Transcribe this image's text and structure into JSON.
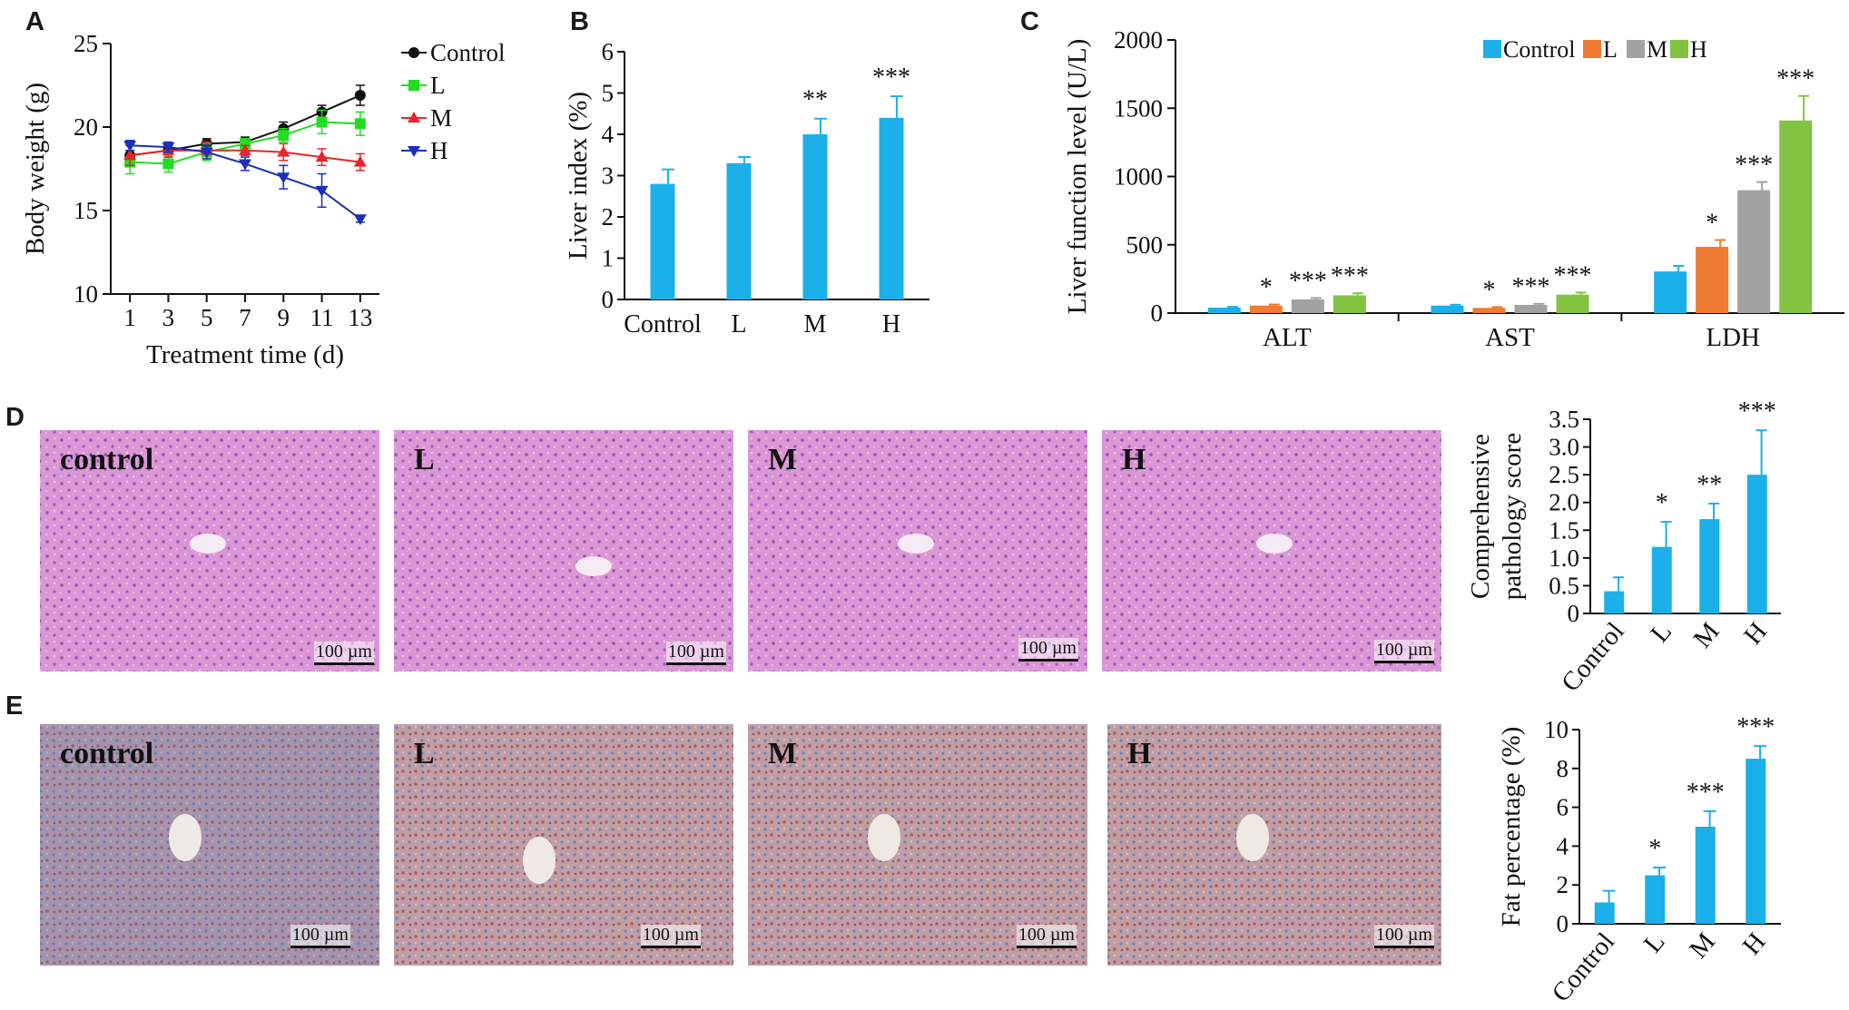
{
  "panels": {
    "A": {
      "letter": "A"
    },
    "B": {
      "letter": "B"
    },
    "C": {
      "letter": "C"
    },
    "D": {
      "letter": "D",
      "images": [
        "control",
        "L",
        "M",
        "H"
      ],
      "scale_bar": "100 µm"
    },
    "E": {
      "letter": "E",
      "images": [
        "control",
        "L",
        "M",
        "H"
      ],
      "scale_bar": "100 µm"
    }
  },
  "colors": {
    "control": "#1bb0ea",
    "L": "#ef7c32",
    "M": "#a2a2a2",
    "H": "#82c341",
    "line_control": "#111111",
    "line_L": "#22dd22",
    "line_M": "#e8262b",
    "line_H": "#1b2fb8",
    "he_stain": "#d88fd2",
    "oil_red": "#c79a97"
  },
  "chart_data": [
    {
      "id": "A",
      "type": "line",
      "xlabel": "Treatment time (d)",
      "ylabel": "Body weight (g)",
      "x": [
        1,
        3,
        5,
        7,
        9,
        11,
        13
      ],
      "xticks": [
        1,
        3,
        5,
        7,
        9,
        11,
        13
      ],
      "ylim": [
        10,
        25
      ],
      "yticks": [
        10,
        15,
        20,
        25
      ],
      "legend": "right",
      "series": [
        {
          "name": "Control",
          "marker": "circle",
          "values": [
            18.3,
            18.6,
            19.0,
            19.1,
            19.9,
            20.9,
            21.9
          ],
          "err": [
            0.6,
            0.4,
            0.3,
            0.3,
            0.4,
            0.4,
            0.6
          ]
        },
        {
          "name": "L",
          "marker": "square",
          "values": [
            17.9,
            17.8,
            18.5,
            19.0,
            19.5,
            20.3,
            20.2
          ],
          "err": [
            0.7,
            0.5,
            0.5,
            0.3,
            0.4,
            0.7,
            0.7
          ]
        },
        {
          "name": "M",
          "marker": "triangle-up",
          "values": [
            18.3,
            18.6,
            18.6,
            18.6,
            18.5,
            18.2,
            17.9
          ],
          "err": [
            0.6,
            0.4,
            0.5,
            0.3,
            0.5,
            0.5,
            0.5
          ]
        },
        {
          "name": "H",
          "marker": "triangle-down",
          "values": [
            18.9,
            18.8,
            18.5,
            17.8,
            17.0,
            16.2,
            14.5
          ],
          "err": [
            0.3,
            0.3,
            0.4,
            0.4,
            0.7,
            1.0,
            0.2
          ]
        }
      ]
    },
    {
      "id": "B",
      "type": "bar",
      "categories": [
        "Control",
        "L",
        "M",
        "H"
      ],
      "values": [
        2.8,
        3.3,
        4.0,
        4.4
      ],
      "err": [
        0.35,
        0.15,
        0.38,
        0.52
      ],
      "sig": [
        "",
        "",
        "**",
        "***"
      ],
      "ylabel": "Liver index (%)",
      "ylim": [
        0,
        6
      ],
      "yticks": [
        0,
        1,
        2,
        3,
        4,
        5,
        6
      ]
    },
    {
      "id": "C",
      "type": "bar",
      "categories": [
        "ALT",
        "AST",
        "LDH"
      ],
      "ylabel": "Liver function level (U/L)",
      "ylim": [
        0,
        2000
      ],
      "yticks": [
        0,
        500,
        1000,
        1500,
        2000
      ],
      "legend": "top",
      "series": [
        {
          "name": "Control",
          "values": [
            40,
            55,
            305
          ],
          "err": [
            5,
            6,
            40
          ],
          "sig": [
            "",
            "",
            ""
          ]
        },
        {
          "name": "L",
          "values": [
            55,
            38,
            485
          ],
          "err": [
            8,
            6,
            50
          ],
          "sig": [
            "*",
            "*",
            "*"
          ]
        },
        {
          "name": "M",
          "values": [
            100,
            60,
            900
          ],
          "err": [
            10,
            8,
            60
          ],
          "sig": [
            "***",
            "***",
            "***"
          ]
        },
        {
          "name": "H",
          "values": [
            130,
            135,
            1410
          ],
          "err": [
            15,
            15,
            180
          ],
          "sig": [
            "***",
            "***",
            "***"
          ]
        }
      ]
    },
    {
      "id": "D",
      "type": "bar",
      "categories": [
        "Control",
        "L",
        "M",
        "H"
      ],
      "values": [
        0.4,
        1.2,
        1.7,
        2.5
      ],
      "err": [
        0.25,
        0.45,
        0.28,
        0.8
      ],
      "sig": [
        "",
        "*",
        "**",
        "***"
      ],
      "ylabel": "Comprehensive pathology score",
      "ylim": [
        0,
        3.5
      ],
      "yticks": [
        "0",
        "0.5",
        "1.0",
        "1.5",
        "2.0",
        "2.5",
        "3.0",
        "3.5"
      ]
    },
    {
      "id": "E",
      "type": "bar",
      "categories": [
        "Control",
        "L",
        "M",
        "H"
      ],
      "values": [
        1.1,
        2.5,
        5.0,
        8.5
      ],
      "err": [
        0.6,
        0.4,
        0.8,
        0.65
      ],
      "sig": [
        "",
        "*",
        "***",
        "***"
      ],
      "ylabel": "Fat percentage (%)",
      "ylim": [
        0,
        10
      ],
      "yticks": [
        0,
        2,
        4,
        6,
        8,
        10
      ]
    }
  ]
}
